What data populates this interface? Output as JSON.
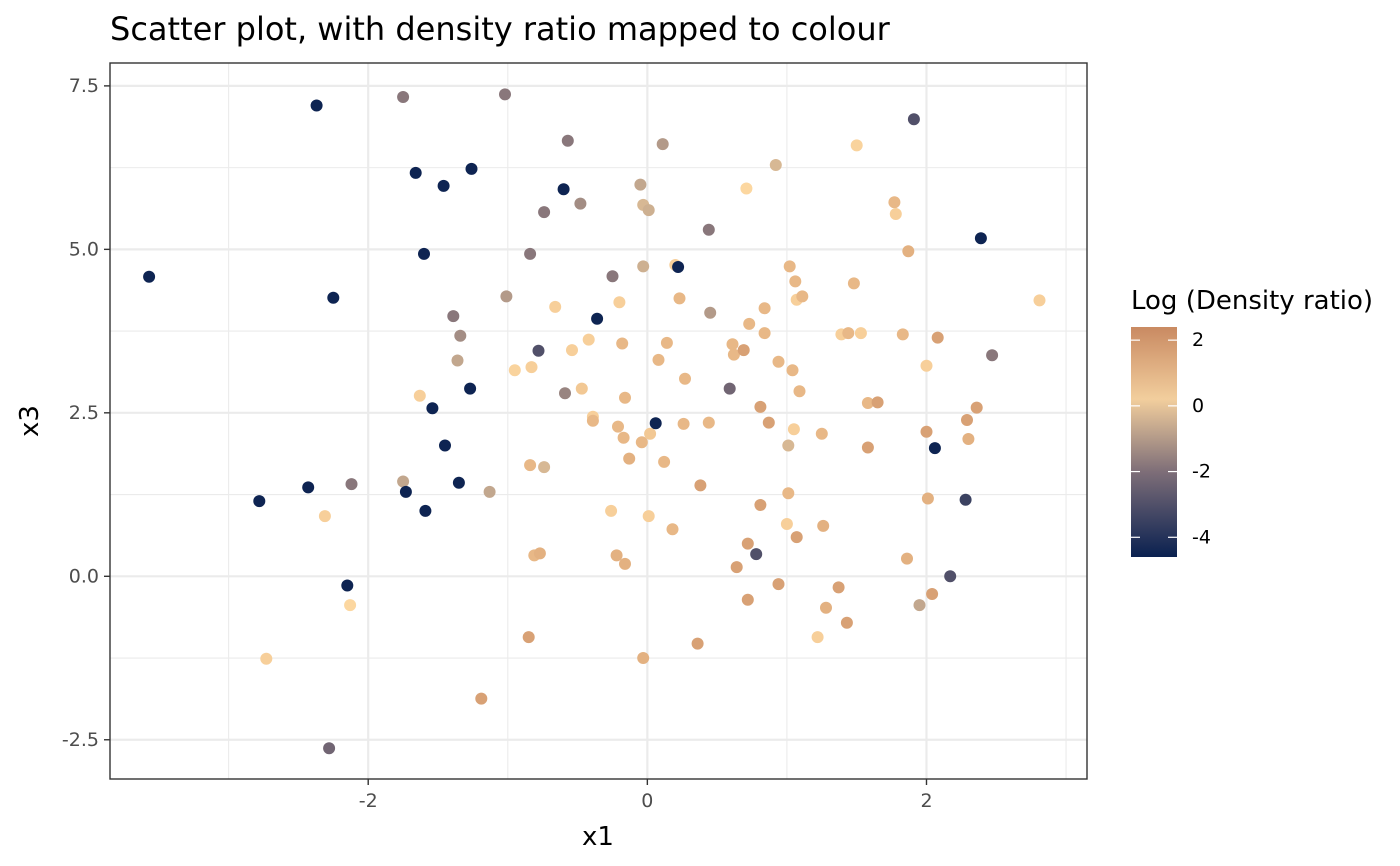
{
  "chart_data": {
    "type": "scatter",
    "title": "Scatter plot, with density ratio mapped to colour",
    "xlabel": "x1",
    "ylabel": "x3",
    "xlim": [
      -3.85,
      3.15
    ],
    "ylim": [
      -3.1,
      7.85
    ],
    "x_ticks": [
      -2,
      0,
      2
    ],
    "x_tick_labels": [
      "-2",
      "0",
      "2"
    ],
    "y_ticks": [
      -2.5,
      0.0,
      2.5,
      5.0,
      7.5
    ],
    "y_tick_labels": [
      "-2.5",
      "0.0",
      "2.5",
      "5.0",
      "7.5"
    ],
    "grid": true,
    "legend": {
      "title": "Log (Density ratio)",
      "placement": "right",
      "range": [
        -4.6,
        2.4
      ],
      "breaks": [
        2,
        0,
        -2,
        -4
      ],
      "break_labels": [
        "2",
        "0",
        "-2",
        "-4"
      ],
      "colors": {
        "low": "#0a2150",
        "mid_low": "#7e6e78",
        "mid": "#fcd7a0",
        "high": "#c98a62"
      }
    },
    "points": [
      {
        "x": -3.57,
        "y": 4.58,
        "c": -4.5
      },
      {
        "x": -2.78,
        "y": 1.15,
        "c": -4.5
      },
      {
        "x": -2.73,
        "y": -1.26,
        "c": 0.6
      },
      {
        "x": -2.43,
        "y": 1.36,
        "c": -4.5
      },
      {
        "x": -2.37,
        "y": 7.2,
        "c": -4.5
      },
      {
        "x": -2.31,
        "y": 0.92,
        "c": 0.6
      },
      {
        "x": -2.28,
        "y": -2.63,
        "c": -2.3
      },
      {
        "x": -2.25,
        "y": 4.26,
        "c": -4.5
      },
      {
        "x": -2.15,
        "y": -0.14,
        "c": -4.5
      },
      {
        "x": -2.13,
        "y": -0.44,
        "c": 0.4
      },
      {
        "x": -2.12,
        "y": 1.41,
        "c": -1.8
      },
      {
        "x": -1.75,
        "y": 7.33,
        "c": -1.8
      },
      {
        "x": -1.75,
        "y": 1.45,
        "c": -0.7
      },
      {
        "x": -1.73,
        "y": 1.29,
        "c": -4.5
      },
      {
        "x": -1.66,
        "y": 6.17,
        "c": -4.5
      },
      {
        "x": -1.63,
        "y": 2.76,
        "c": 0.6
      },
      {
        "x": -1.6,
        "y": 4.93,
        "c": -4.5
      },
      {
        "x": -1.59,
        "y": 1.0,
        "c": -4.5
      },
      {
        "x": -1.54,
        "y": 2.57,
        "c": -4.5
      },
      {
        "x": -1.46,
        "y": 5.97,
        "c": -4.5
      },
      {
        "x": -1.45,
        "y": 2.0,
        "c": -4.5
      },
      {
        "x": -1.39,
        "y": 3.98,
        "c": -1.8
      },
      {
        "x": -1.36,
        "y": 3.3,
        "c": -0.7
      },
      {
        "x": -1.35,
        "y": 1.43,
        "c": -4.5
      },
      {
        "x": -1.34,
        "y": 3.68,
        "c": -1.3
      },
      {
        "x": -1.27,
        "y": 2.87,
        "c": -4.5
      },
      {
        "x": -1.26,
        "y": 6.23,
        "c": -4.5
      },
      {
        "x": -1.19,
        "y": -1.87,
        "c": 1.8
      },
      {
        "x": -1.13,
        "y": 1.29,
        "c": -0.7
      },
      {
        "x": -1.02,
        "y": 7.37,
        "c": -1.8
      },
      {
        "x": -1.01,
        "y": 4.28,
        "c": -1.0
      },
      {
        "x": -0.95,
        "y": 3.15,
        "c": 0.5
      },
      {
        "x": -0.85,
        "y": -0.93,
        "c": 1.8
      },
      {
        "x": -0.84,
        "y": 4.93,
        "c": -1.8
      },
      {
        "x": -0.84,
        "y": 1.7,
        "c": 1.2
      },
      {
        "x": -0.83,
        "y": 3.2,
        "c": 0.6
      },
      {
        "x": -0.81,
        "y": 0.32,
        "c": 1.2
      },
      {
        "x": -0.78,
        "y": 3.45,
        "c": -3.0
      },
      {
        "x": -0.77,
        "y": 0.35,
        "c": 1.4
      },
      {
        "x": -0.74,
        "y": 5.57,
        "c": -1.8
      },
      {
        "x": -0.74,
        "y": 1.67,
        "c": -0.3
      },
      {
        "x": -0.66,
        "y": 4.12,
        "c": 0.6
      },
      {
        "x": -0.6,
        "y": 5.92,
        "c": -4.5
      },
      {
        "x": -0.59,
        "y": 2.8,
        "c": -1.5
      },
      {
        "x": -0.57,
        "y": 6.66,
        "c": -1.8
      },
      {
        "x": -0.54,
        "y": 3.46,
        "c": 0.6
      },
      {
        "x": -0.48,
        "y": 5.7,
        "c": -1.3
      },
      {
        "x": -0.47,
        "y": 2.87,
        "c": 0.8
      },
      {
        "x": -0.42,
        "y": 3.62,
        "c": 0.6
      },
      {
        "x": -0.39,
        "y": 2.44,
        "c": 0.6
      },
      {
        "x": -0.39,
        "y": 2.38,
        "c": 1.2
      },
      {
        "x": -0.36,
        "y": 3.94,
        "c": -4.5
      },
      {
        "x": -0.26,
        "y": 1.0,
        "c": 0.6
      },
      {
        "x": -0.25,
        "y": 4.59,
        "c": -1.8
      },
      {
        "x": -0.22,
        "y": 0.32,
        "c": 1.4
      },
      {
        "x": -0.21,
        "y": 2.29,
        "c": 1.2
      },
      {
        "x": -0.2,
        "y": 4.19,
        "c": 0.6
      },
      {
        "x": -0.18,
        "y": 3.56,
        "c": 1.2
      },
      {
        "x": -0.17,
        "y": 2.12,
        "c": 1.2
      },
      {
        "x": -0.16,
        "y": 2.73,
        "c": 1.2
      },
      {
        "x": -0.16,
        "y": 0.19,
        "c": 1.4
      },
      {
        "x": -0.13,
        "y": 1.8,
        "c": 1.4
      },
      {
        "x": -0.05,
        "y": 5.99,
        "c": -0.7
      },
      {
        "x": -0.04,
        "y": 2.05,
        "c": 1.2
      },
      {
        "x": -0.03,
        "y": 5.68,
        "c": -0.3
      },
      {
        "x": -0.03,
        "y": 4.74,
        "c": -0.5
      },
      {
        "x": -0.03,
        "y": -1.25,
        "c": 1.4
      },
      {
        "x": 0.01,
        "y": 5.6,
        "c": -0.5
      },
      {
        "x": 0.01,
        "y": 0.92,
        "c": 0.6
      },
      {
        "x": 0.02,
        "y": 2.18,
        "c": 0.8
      },
      {
        "x": 0.06,
        "y": 2.34,
        "c": -4.5
      },
      {
        "x": 0.08,
        "y": 3.31,
        "c": 1.2
      },
      {
        "x": 0.11,
        "y": 6.61,
        "c": -1.0
      },
      {
        "x": 0.12,
        "y": 1.75,
        "c": 1.2
      },
      {
        "x": 0.14,
        "y": 3.57,
        "c": 1.2
      },
      {
        "x": 0.18,
        "y": 0.72,
        "c": 1.2
      },
      {
        "x": 0.2,
        "y": 4.76,
        "c": 0.6
      },
      {
        "x": 0.22,
        "y": 4.73,
        "c": -4.5
      },
      {
        "x": 0.23,
        "y": 4.25,
        "c": 1.2
      },
      {
        "x": 0.26,
        "y": 2.33,
        "c": 1.2
      },
      {
        "x": 0.27,
        "y": 3.02,
        "c": 1.2
      },
      {
        "x": 0.36,
        "y": -1.03,
        "c": 1.8
      },
      {
        "x": 0.38,
        "y": 1.39,
        "c": 1.8
      },
      {
        "x": 0.44,
        "y": 5.3,
        "c": -1.8
      },
      {
        "x": 0.44,
        "y": 2.35,
        "c": 1.2
      },
      {
        "x": 0.45,
        "y": 4.03,
        "c": -1.0
      },
      {
        "x": 0.59,
        "y": 2.87,
        "c": -2.3
      },
      {
        "x": 0.61,
        "y": 3.55,
        "c": 1.2
      },
      {
        "x": 0.62,
        "y": 3.39,
        "c": 1.2
      },
      {
        "x": 0.64,
        "y": 0.14,
        "c": 1.8
      },
      {
        "x": 0.69,
        "y": 3.46,
        "c": 1.8
      },
      {
        "x": 0.71,
        "y": 5.93,
        "c": 0.4
      },
      {
        "x": 0.72,
        "y": -0.36,
        "c": 1.8
      },
      {
        "x": 0.72,
        "y": 0.5,
        "c": 1.8
      },
      {
        "x": 0.73,
        "y": 3.86,
        "c": 1.2
      },
      {
        "x": 0.78,
        "y": 0.34,
        "c": -3.0
      },
      {
        "x": 0.81,
        "y": 1.09,
        "c": 1.8
      },
      {
        "x": 0.81,
        "y": 2.59,
        "c": 1.8
      },
      {
        "x": 0.84,
        "y": 3.72,
        "c": 1.2
      },
      {
        "x": 0.84,
        "y": 4.1,
        "c": 1.2
      },
      {
        "x": 0.87,
        "y": 2.35,
        "c": 1.8
      },
      {
        "x": 0.92,
        "y": 6.29,
        "c": -0.3
      },
      {
        "x": 0.94,
        "y": 3.28,
        "c": 1.2
      },
      {
        "x": 0.94,
        "y": -0.12,
        "c": 1.8
      },
      {
        "x": 1.0,
        "y": 0.8,
        "c": 0.6
      },
      {
        "x": 1.01,
        "y": 1.27,
        "c": 1.2
      },
      {
        "x": 1.01,
        "y": 2.0,
        "c": -0.3
      },
      {
        "x": 1.02,
        "y": 4.74,
        "c": 1.2
      },
      {
        "x": 1.04,
        "y": 3.15,
        "c": 1.2
      },
      {
        "x": 1.05,
        "y": 2.25,
        "c": 0.6
      },
      {
        "x": 1.06,
        "y": 4.51,
        "c": 1.2
      },
      {
        "x": 1.07,
        "y": 0.6,
        "c": 1.8
      },
      {
        "x": 1.07,
        "y": 4.23,
        "c": 0.6
      },
      {
        "x": 1.09,
        "y": 2.83,
        "c": 1.2
      },
      {
        "x": 1.11,
        "y": 4.28,
        "c": 1.2
      },
      {
        "x": 1.22,
        "y": -0.93,
        "c": 0.6
      },
      {
        "x": 1.25,
        "y": 2.18,
        "c": 1.2
      },
      {
        "x": 1.26,
        "y": 0.77,
        "c": 1.4
      },
      {
        "x": 1.28,
        "y": -0.48,
        "c": 1.4
      },
      {
        "x": 1.37,
        "y": -0.17,
        "c": 1.8
      },
      {
        "x": 1.39,
        "y": 3.7,
        "c": 0.6
      },
      {
        "x": 1.43,
        "y": -0.71,
        "c": 1.8
      },
      {
        "x": 1.44,
        "y": 3.72,
        "c": 1.2
      },
      {
        "x": 1.48,
        "y": 4.48,
        "c": 1.2
      },
      {
        "x": 1.5,
        "y": 6.59,
        "c": 0.5
      },
      {
        "x": 1.53,
        "y": 3.72,
        "c": 0.6
      },
      {
        "x": 1.58,
        "y": 1.97,
        "c": 1.8
      },
      {
        "x": 1.58,
        "y": 2.65,
        "c": 1.2
      },
      {
        "x": 1.65,
        "y": 2.66,
        "c": 1.8
      },
      {
        "x": 1.77,
        "y": 5.72,
        "c": 1.2
      },
      {
        "x": 1.78,
        "y": 5.54,
        "c": 0.6
      },
      {
        "x": 1.83,
        "y": 3.7,
        "c": 1.2
      },
      {
        "x": 1.86,
        "y": 0.27,
        "c": 1.4
      },
      {
        "x": 1.87,
        "y": 4.97,
        "c": 1.4
      },
      {
        "x": 1.91,
        "y": 6.99,
        "c": -3.0
      },
      {
        "x": 1.95,
        "y": -0.44,
        "c": -0.7
      },
      {
        "x": 2.0,
        "y": 2.21,
        "c": 1.8
      },
      {
        "x": 2.0,
        "y": 3.22,
        "c": 0.6
      },
      {
        "x": 2.01,
        "y": 1.19,
        "c": 1.4
      },
      {
        "x": 2.04,
        "y": -0.27,
        "c": 1.8
      },
      {
        "x": 2.06,
        "y": 1.96,
        "c": -4.5
      },
      {
        "x": 2.08,
        "y": 3.65,
        "c": 1.8
      },
      {
        "x": 2.17,
        "y": 0.0,
        "c": -3.0
      },
      {
        "x": 2.28,
        "y": 1.17,
        "c": -3.5
      },
      {
        "x": 2.29,
        "y": 2.39,
        "c": 1.8
      },
      {
        "x": 2.3,
        "y": 2.1,
        "c": 1.4
      },
      {
        "x": 2.36,
        "y": 2.58,
        "c": 1.8
      },
      {
        "x": 2.39,
        "y": 5.17,
        "c": -4.5
      },
      {
        "x": 2.47,
        "y": 3.38,
        "c": -1.8
      },
      {
        "x": 2.81,
        "y": 4.22,
        "c": 0.6
      }
    ]
  }
}
